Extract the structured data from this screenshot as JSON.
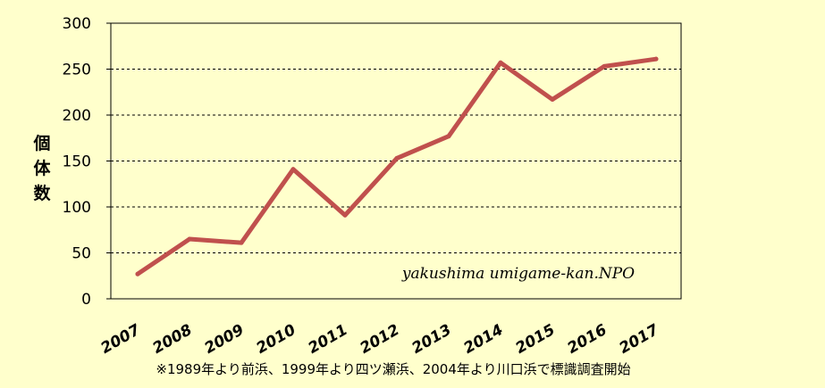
{
  "chart_data": {
    "type": "line",
    "categories": [
      "2007",
      "2008",
      "2009",
      "2010",
      "2011",
      "2012",
      "2013",
      "2014",
      "2015",
      "2016",
      "2017"
    ],
    "series": [
      {
        "values": [
          27,
          65,
          61,
          141,
          91,
          153,
          177,
          257,
          217,
          253,
          261
        ]
      }
    ],
    "ylim": [
      0,
      300
    ],
    "yticks": [
      0,
      50,
      100,
      150,
      200,
      250,
      300
    ],
    "ylabel": "個体数",
    "grid": "horizontal dashed",
    "line_color": "#c0504d",
    "plot_background": "#ffffcc"
  },
  "annotation": "yakushima umigame-kan.NPO",
  "footnote": "※1989年より前浜、1999年より四ツ瀬浜、2004年より川口浜で標識調査開始"
}
